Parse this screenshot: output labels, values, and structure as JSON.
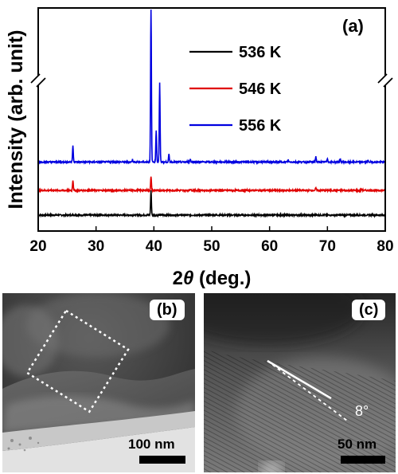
{
  "chart_data": {
    "type": "line",
    "panel_label": "(a)",
    "xlabel_symbol": "2",
    "xlabel_var": "θ",
    "xlabel_rest": " (deg.)",
    "ylabel": "Intensity (arb. unit)",
    "xlim": [
      20,
      80
    ],
    "xticks": [
      20,
      30,
      40,
      50,
      60,
      70,
      80
    ],
    "xtick_labels": [
      "20",
      "30",
      "40",
      "50",
      "60",
      "70",
      "80"
    ],
    "y_axis_break": true,
    "legend_position": "top-right",
    "series": [
      {
        "name": "536 K",
        "color": "#000000",
        "baseline": 0.0,
        "peaks": [
          [
            39.5,
            1.0
          ],
          [
            26.0,
            0.03
          ],
          [
            68.0,
            0.02
          ]
        ]
      },
      {
        "name": "546 K",
        "color": "#e00000",
        "baseline": 1.0,
        "peaks": [
          [
            39.5,
            0.55
          ],
          [
            26.0,
            0.42
          ],
          [
            46.3,
            0.06
          ],
          [
            68.0,
            0.1
          ],
          [
            76.0,
            0.05
          ]
        ]
      },
      {
        "name": "556 K",
        "color": "#0000e0",
        "baseline": 2.15,
        "peaks": [
          [
            39.5,
            6.5
          ],
          [
            40.4,
            1.3
          ],
          [
            41.0,
            3.2
          ],
          [
            42.6,
            0.3
          ],
          [
            26.0,
            0.65
          ],
          [
            36.3,
            0.1
          ],
          [
            46.3,
            0.12
          ],
          [
            63.2,
            0.08
          ],
          [
            68.0,
            0.22
          ],
          [
            70.0,
            0.15
          ],
          [
            72.2,
            0.12
          ],
          [
            77.0,
            0.06
          ]
        ]
      }
    ]
  },
  "micrographs": [
    {
      "label": "(b)",
      "scale": "100 nm"
    },
    {
      "label": "(c)",
      "scale": "50 nm",
      "angle": "8°"
    }
  ]
}
